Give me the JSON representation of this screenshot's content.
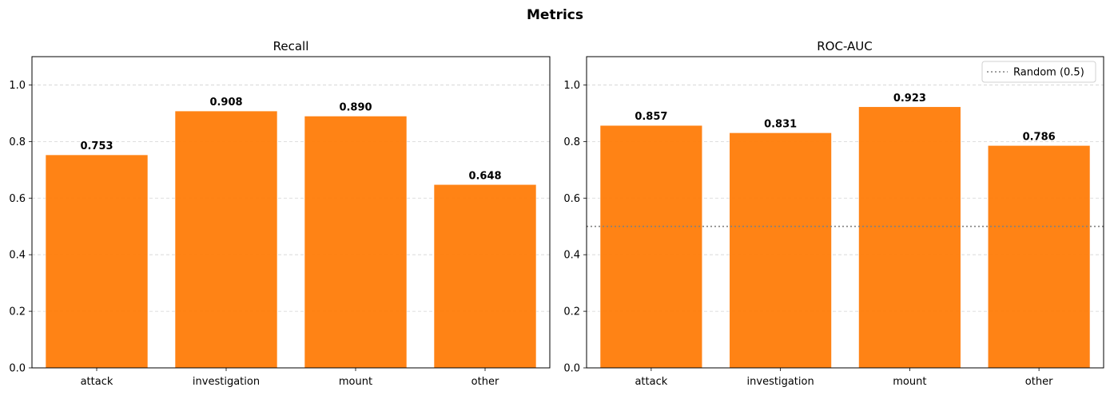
{
  "figure": {
    "title": "Metrics"
  },
  "chart_data": [
    {
      "type": "bar",
      "title": "Recall",
      "xlabel": "",
      "ylabel": "",
      "categories": [
        "attack",
        "investigation",
        "mount",
        "other"
      ],
      "values": [
        0.753,
        0.908,
        0.89,
        0.648
      ],
      "value_labels": [
        "0.753",
        "0.908",
        "0.890",
        "0.648"
      ],
      "ylim": [
        0,
        1.1
      ],
      "yticks": [
        0.0,
        0.2,
        0.4,
        0.6,
        0.8,
        1.0
      ],
      "ytick_labels": [
        "0.0",
        "0.2",
        "0.4",
        "0.6",
        "0.8",
        "1.0"
      ],
      "grid": "y-dashed",
      "bar_color": "#ff7f0e"
    },
    {
      "type": "bar",
      "title": "ROC-AUC",
      "xlabel": "",
      "ylabel": "",
      "categories": [
        "attack",
        "investigation",
        "mount",
        "other"
      ],
      "values": [
        0.857,
        0.831,
        0.923,
        0.786
      ],
      "value_labels": [
        "0.857",
        "0.831",
        "0.923",
        "0.786"
      ],
      "ylim": [
        0,
        1.1
      ],
      "yticks": [
        0.0,
        0.2,
        0.4,
        0.6,
        0.8,
        1.0
      ],
      "ytick_labels": [
        "0.0",
        "0.2",
        "0.4",
        "0.6",
        "0.8",
        "1.0"
      ],
      "grid": "y-dashed",
      "bar_color": "#ff7f0e",
      "reference_line": {
        "y": 0.5,
        "label": "Random (0.5)",
        "style": "dotted",
        "color": "#808080"
      },
      "legend": {
        "entries": [
          "Random (0.5)"
        ],
        "placement": "top-right"
      }
    }
  ]
}
